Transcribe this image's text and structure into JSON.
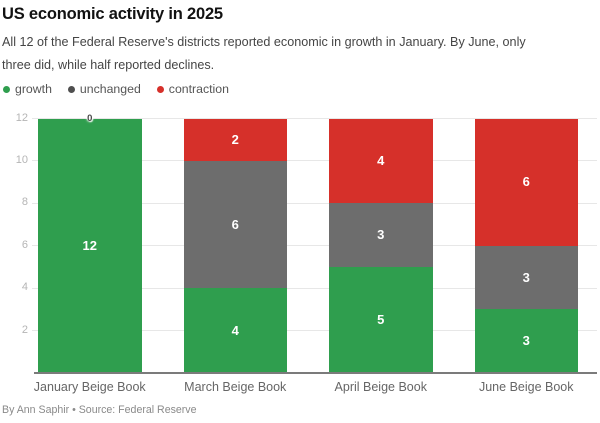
{
  "header": {
    "title": "US economic activity in 2025",
    "subtitle_line1": "All 12 of the Federal Reserve's districts reported economic in growth in January. By June, only",
    "subtitle_line2": "three did, while half reported declines."
  },
  "legend": {
    "items": [
      {
        "label": "growth",
        "color": "#2f9e4e"
      },
      {
        "label": "unchanged",
        "color": "#4f4f4f"
      },
      {
        "label": "contraction",
        "color": "#d6302a"
      }
    ]
  },
  "footer": {
    "byline": "By Ann Saphir • Source: Federal Reserve"
  },
  "colors": {
    "growth": "#2f9e4e",
    "unchanged": "#6d6d6d",
    "contraction": "#d6302a"
  },
  "chart_data": {
    "type": "bar",
    "stacked": true,
    "title": "US economic activity in 2025",
    "xlabel": "",
    "ylabel": "",
    "categories": [
      "January Beige Book",
      "March Beige Book",
      "April Beige Book",
      "June Beige Book"
    ],
    "series": [
      {
        "name": "growth",
        "color": "#2f9e4e",
        "values": [
          12,
          4,
          5,
          3
        ]
      },
      {
        "name": "unchanged",
        "color": "#6d6d6d",
        "values": [
          0,
          6,
          3,
          3
        ]
      },
      {
        "name": "contraction",
        "color": "#d6302a",
        "values": [
          0,
          2,
          4,
          6
        ]
      }
    ],
    "zero_labels": [
      {
        "category_index": 0,
        "series": "unchanged",
        "label": "0"
      }
    ],
    "yticks": [
      2,
      4,
      6,
      8,
      10,
      12
    ],
    "ylim": [
      0,
      12
    ],
    "grid": true,
    "legend_position": "top-left"
  }
}
